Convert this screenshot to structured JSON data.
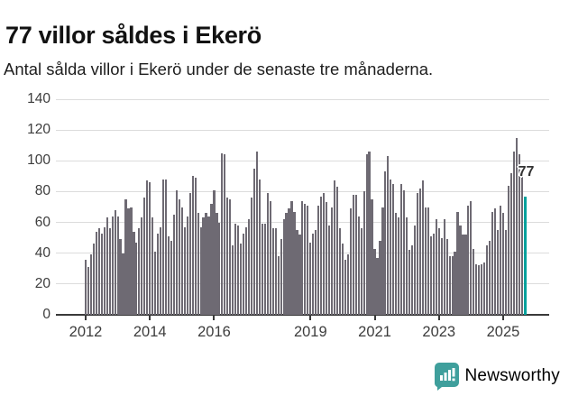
{
  "header": {
    "title": "77 villor såldes i Ekerö",
    "subtitle": "Antal sålda villor i Ekerö under de senaste tre månaderna."
  },
  "chart_data": {
    "type": "bar",
    "title": "77 villor såldes i Ekerö",
    "subtitle": "Antal sålda villor i Ekerö under de senaste tre månaderna.",
    "x_start": "2012-01",
    "x_end": "2025-09",
    "x_frequency": "monthly",
    "ylim": [
      0,
      140
    ],
    "y_ticks": [
      0,
      20,
      40,
      60,
      80,
      100,
      120,
      140
    ],
    "x_tick_years": [
      2012,
      2014,
      2016,
      2019,
      2021,
      2023,
      2025
    ],
    "grid": true,
    "bar_color": "#6e6a73",
    "highlight_color": "#00a19c",
    "highlight_index": 164,
    "highlight_label": "77",
    "values": [
      36,
      31,
      39,
      46,
      54,
      56,
      53,
      57,
      63,
      56,
      64,
      68,
      64,
      49,
      40,
      75,
      69,
      70,
      54,
      47,
      56,
      63,
      76,
      87,
      86,
      63,
      41,
      53,
      57,
      88,
      88,
      51,
      48,
      65,
      81,
      75,
      70,
      57,
      64,
      79,
      90,
      89,
      66,
      57,
      63,
      66,
      64,
      72,
      81,
      66,
      60,
      105,
      104,
      76,
      75,
      45,
      59,
      58,
      46,
      53,
      57,
      62,
      76,
      95,
      106,
      88,
      59,
      59,
      79,
      74,
      56,
      56,
      38,
      49,
      62,
      66,
      69,
      74,
      67,
      55,
      52,
      74,
      72,
      71,
      47,
      53,
      55,
      71,
      77,
      79,
      73,
      58,
      70,
      87,
      83,
      56,
      46,
      36,
      39,
      69,
      78,
      78,
      64,
      56,
      80,
      104,
      106,
      75,
      43,
      37,
      48,
      70,
      93,
      103,
      88,
      85,
      66,
      63,
      85,
      81,
      63,
      42,
      45,
      58,
      79,
      82,
      87,
      70,
      70,
      51,
      53,
      62,
      56,
      50,
      62,
      49,
      38,
      38,
      41,
      67,
      58,
      52,
      52,
      71,
      74,
      43,
      33,
      32,
      33,
      34,
      45,
      48,
      67,
      69,
      55,
      71,
      66,
      55,
      84,
      92,
      106,
      115,
      104,
      90,
      77
    ]
  },
  "branding": {
    "logo_text": "Newsworthy",
    "logo_color": "#3f9f9c",
    "logo_icon": "bar-chart-speech-bubble"
  }
}
